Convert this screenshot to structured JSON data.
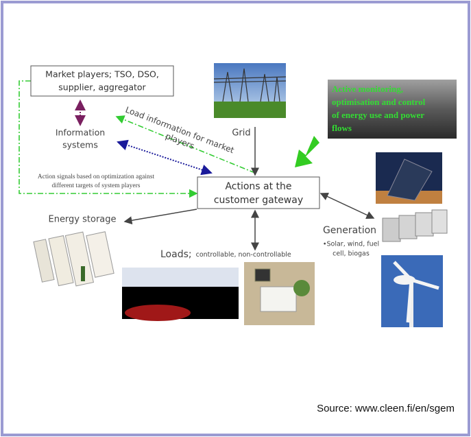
{
  "market_players": {
    "lines": [
      "Market players; TSO, DSO,",
      "supplier, aggregator"
    ]
  },
  "information_systems": {
    "lines": [
      "Information",
      "systems"
    ]
  },
  "load_information": {
    "lines": [
      "Load information for market",
      "players"
    ]
  },
  "grid": "Grid",
  "highlight": {
    "lines": [
      "Active monitoring,",
      "optimisation and control",
      "of energy use and power",
      "flows"
    ]
  },
  "action_signals": {
    "lines": [
      "Action signals based on optimization against",
      "different targets of system players"
    ]
  },
  "gateway": {
    "lines": [
      "Actions at the",
      "customer gateway"
    ]
  },
  "energy_storage": "Energy storage",
  "generation": {
    "title": "Generation",
    "details": [
      "•Solar, wind, fuel",
      "cell, biogas"
    ]
  },
  "loads": {
    "title": "Loads;",
    "detail": "controllable, non-controllable"
  },
  "source": "Source: www.cleen.fi/en/sgem"
}
